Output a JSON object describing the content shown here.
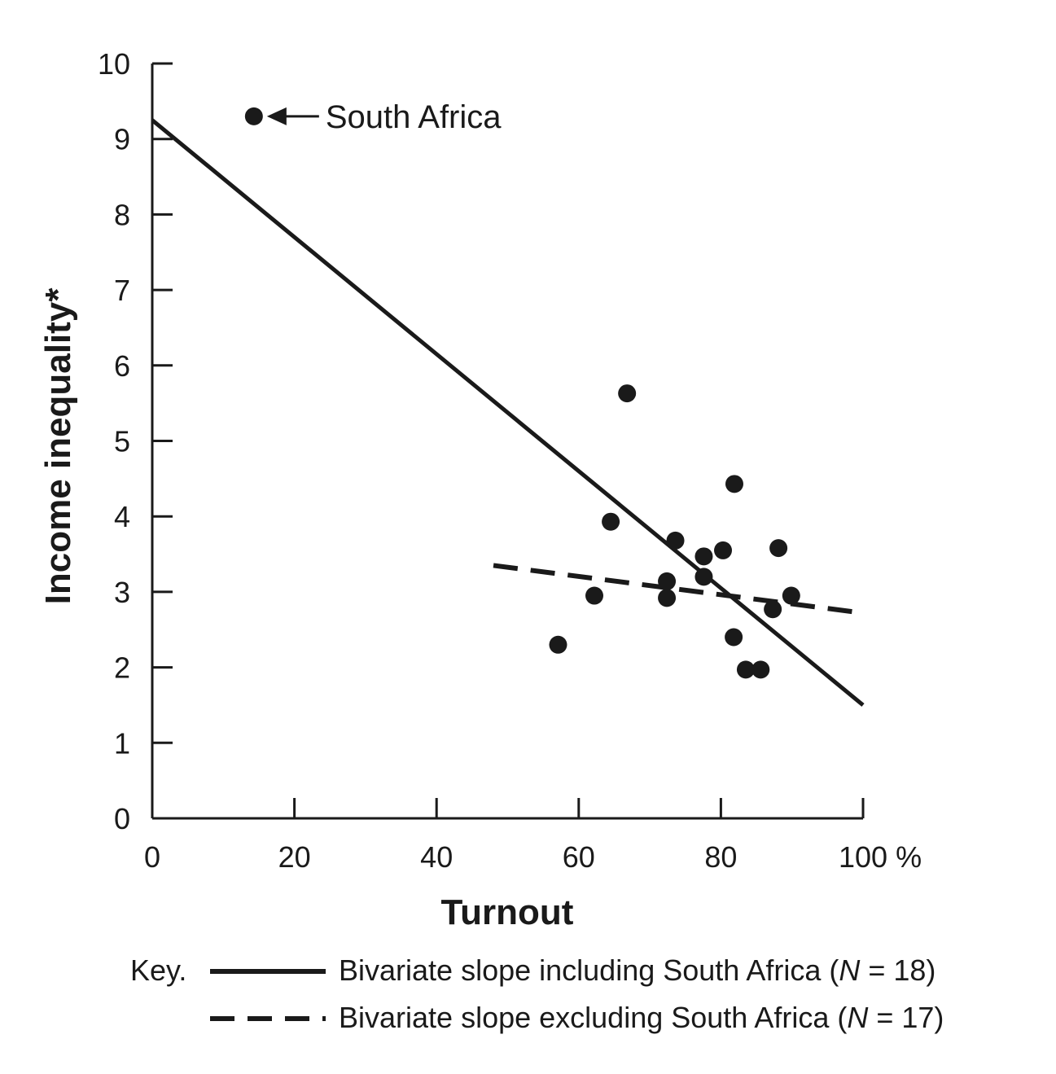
{
  "chart_data": {
    "type": "scatter",
    "xlabel": "Turnout",
    "ylabel": "Income inequality*",
    "xlim": [
      0,
      100
    ],
    "ylim": [
      0,
      10
    ],
    "x_ticks": [
      "0",
      "20",
      "40",
      "60",
      "80",
      "100 %"
    ],
    "y_ticks": [
      "0",
      "1",
      "2",
      "3",
      "4",
      "5",
      "6",
      "7",
      "8",
      "9",
      "10"
    ],
    "grid": false,
    "points": [
      {
        "x": 14.3,
        "y": 9.3
      },
      {
        "x": 57.1,
        "y": 2.3
      },
      {
        "x": 62.2,
        "y": 2.95
      },
      {
        "x": 64.5,
        "y": 3.93
      },
      {
        "x": 66.8,
        "y": 5.63
      },
      {
        "x": 72.4,
        "y": 3.14
      },
      {
        "x": 72.4,
        "y": 2.92
      },
      {
        "x": 73.6,
        "y": 3.68
      },
      {
        "x": 77.6,
        "y": 3.47
      },
      {
        "x": 77.6,
        "y": 3.2
      },
      {
        "x": 80.3,
        "y": 3.55
      },
      {
        "x": 81.9,
        "y": 4.43
      },
      {
        "x": 81.8,
        "y": 2.4
      },
      {
        "x": 83.5,
        "y": 1.97
      },
      {
        "x": 85.6,
        "y": 1.97
      },
      {
        "x": 87.3,
        "y": 2.77
      },
      {
        "x": 88.1,
        "y": 3.58
      },
      {
        "x": 89.9,
        "y": 2.95
      }
    ],
    "lines": [
      {
        "name": "Bivariate slope including South Africa (N = 18)",
        "style": "solid",
        "x": [
          0,
          100
        ],
        "y": [
          9.25,
          1.5
        ]
      },
      {
        "name": "Bivariate slope excluding South Africa (N = 17)",
        "style": "dashed",
        "x": [
          48,
          100
        ],
        "y": [
          3.35,
          2.72
        ]
      }
    ],
    "annotations": [
      {
        "text": "South Africa",
        "x": 14.3,
        "y": 9.3,
        "arrow": true
      }
    ],
    "legend": {
      "title": "Key.",
      "position": "bottom",
      "items": [
        {
          "style": "solid",
          "prefix": "Bivariate slope including South Africa (",
          "n_symbol": "N",
          "suffix": " = 18)"
        },
        {
          "style": "dashed",
          "prefix": "Bivariate slope excluding South Africa (",
          "n_symbol": "N",
          "suffix": " = 17)"
        }
      ]
    },
    "colors": {
      "ink": "#1a1a1a",
      "background": "#ffffff"
    }
  }
}
